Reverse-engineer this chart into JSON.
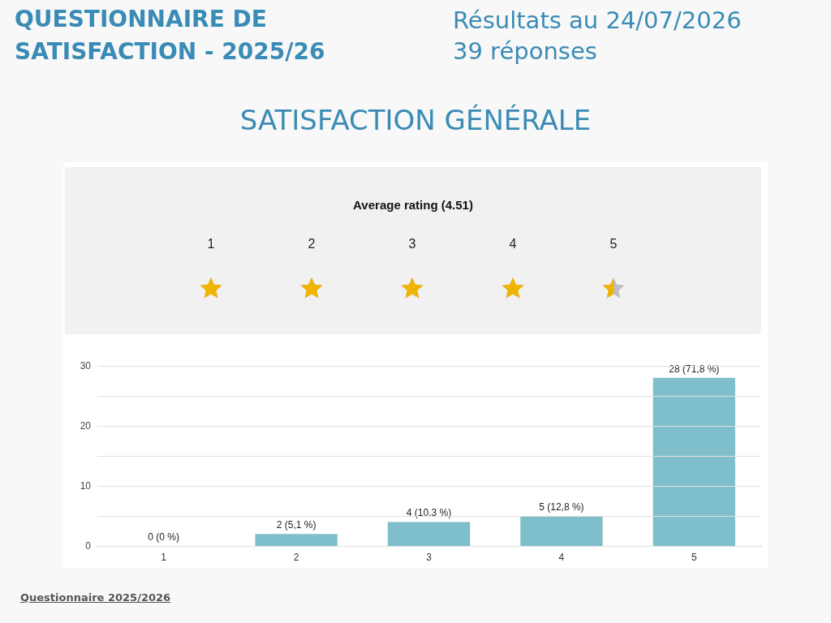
{
  "chart_data": {
    "type": "bar",
    "title": "QUESTIONNAIRE DE SATISFACTION - 2025/26",
    "subtitle": "Résultats au 24/07/2026\n39 réponses",
    "annotations": [
      "SATISFACTION GÉNÉRALE",
      "Average rating (4.51)",
      "Questionnaire 2025/2026"
    ],
    "categories": [
      "1",
      "2",
      "3",
      "4",
      "5"
    ],
    "values": [
      0,
      2,
      4,
      5,
      28
    ],
    "value_labels": [
      "0 (0 %)",
      "2 (5,1 %)",
      "4 (10,3 %)",
      "5 (12,8 %)",
      "28 (71,8 %)"
    ],
    "color": "#7fbfcc",
    "ylim": [
      0,
      30
    ],
    "yticks": [
      0,
      {
        "value": 5,
        "label": null
      },
      10,
      {
        "value": 15,
        "label": null
      },
      20,
      {
        "value": 25,
        "label": null
      },
      30
    ],
    "grid": "y"
  }
}
